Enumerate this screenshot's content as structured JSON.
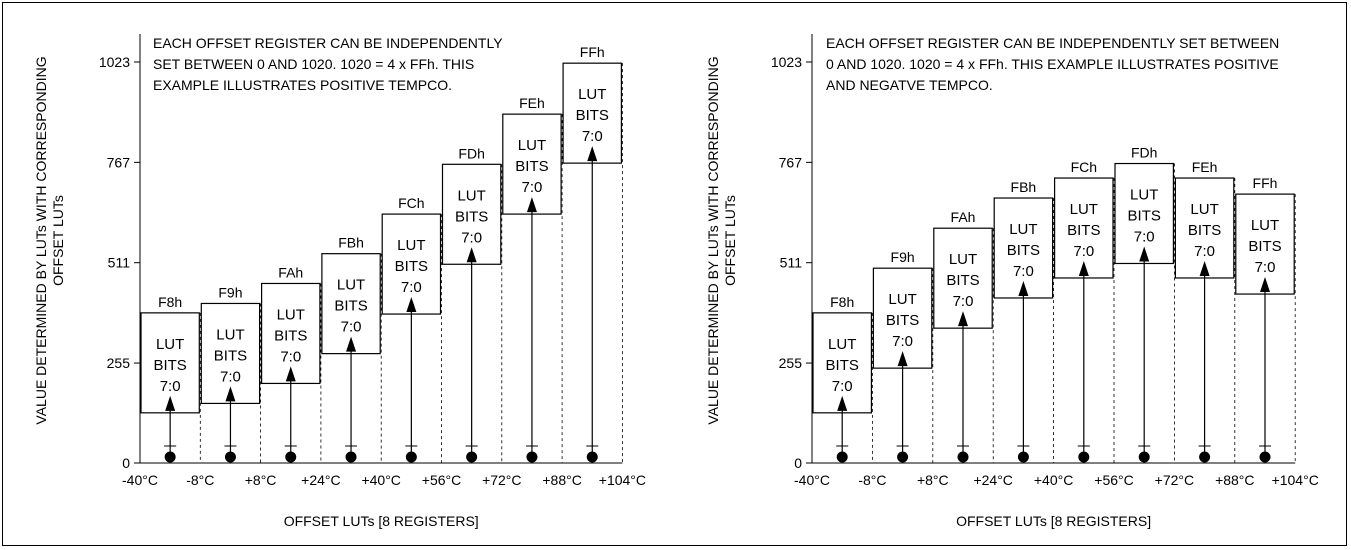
{
  "chart_data": [
    {
      "type": "bar",
      "annotation": "EACH OFFSET REGISTER CAN BE INDEPENDENTLY SET BETWEEN 0 AND 1020. 1020 = 4 x FFh. THIS EXAMPLE ILLUSTRATES POSITIVE TEMPCO.",
      "annotation_lines": [
        "EACH OFFSET REGISTER CAN BE INDEPENDENTLY",
        "SET BETWEEN 0 AND 1020. 1020 = 4 x FFh. THIS",
        "EXAMPLE ILLUSTRATES POSITIVE TEMPCO."
      ],
      "xlabel": "OFFSET LUTs [8 REGISTERS]",
      "ylabel_lines": [
        "VALUE DETERMINED BY LUTs WITH CORRESPONDING",
        "OFFSET LUTs"
      ],
      "yticks": [
        0,
        255,
        511,
        767,
        1023
      ],
      "ylim": [
        0,
        1023
      ],
      "x_boundaries": [
        "-40°C",
        "-8°C",
        "+8°C",
        "+24°C",
        "+40°C",
        "+56°C",
        "+72°C",
        "+88°C",
        "+104°C"
      ],
      "box_text": [
        "LUT",
        "BITS",
        "7:0"
      ],
      "bars": [
        {
          "top_label": "F8h",
          "offset": 128,
          "value": 383
        },
        {
          "top_label": "F9h",
          "offset": 152,
          "value": 407
        },
        {
          "top_label": "FAh",
          "offset": 203,
          "value": 458
        },
        {
          "top_label": "FBh",
          "offset": 279,
          "value": 534
        },
        {
          "top_label": "FCh",
          "offset": 380,
          "value": 635
        },
        {
          "top_label": "FDh",
          "offset": 507,
          "value": 762
        },
        {
          "top_label": "FEh",
          "offset": 635,
          "value": 890
        },
        {
          "top_label": "FFh",
          "offset": 765,
          "value": 1020
        }
      ]
    },
    {
      "type": "bar",
      "annotation": "EACH OFFSET REGISTER CAN BE INDEPENDENTLY SET BETWEEN 0 AND 1020. 1020 = 4 x FFh. THIS EXAMPLE ILLUSTRATES POSITIVE AND NEGATVE TEMPCO.",
      "annotation_lines": [
        "EACH OFFSET REGISTER CAN BE INDEPENDENTLY SET BETWEEN",
        "0 AND 1020. 1020 = 4 x FFh. THIS EXAMPLE ILLUSTRATES POSITIVE",
        "AND NEGATVE TEMPCO."
      ],
      "xlabel": "OFFSET LUTs [8 REGISTERS]",
      "ylabel_lines": [
        "VALUE DETERMINED BY LUTs WITH CORRESPONDING",
        "OFFSET LUTs"
      ],
      "yticks": [
        0,
        255,
        511,
        767,
        1023
      ],
      "ylim": [
        0,
        1023
      ],
      "x_boundaries": [
        "-40°C",
        "-8°C",
        "+8°C",
        "+24°C",
        "+40°C",
        "+56°C",
        "+72°C",
        "+88°C",
        "+104°C"
      ],
      "box_text": [
        "LUT",
        "BITS",
        "7:0"
      ],
      "bars": [
        {
          "top_label": "F8h",
          "offset": 128,
          "value": 383
        },
        {
          "top_label": "F9h",
          "offset": 242,
          "value": 497
        },
        {
          "top_label": "FAh",
          "offset": 344,
          "value": 599
        },
        {
          "top_label": "FBh",
          "offset": 421,
          "value": 676
        },
        {
          "top_label": "FCh",
          "offset": 472,
          "value": 727
        },
        {
          "top_label": "FDh",
          "offset": 509,
          "value": 764
        },
        {
          "top_label": "FEh",
          "offset": 472,
          "value": 727
        },
        {
          "top_label": "FFh",
          "offset": 431,
          "value": 686
        }
      ]
    }
  ]
}
